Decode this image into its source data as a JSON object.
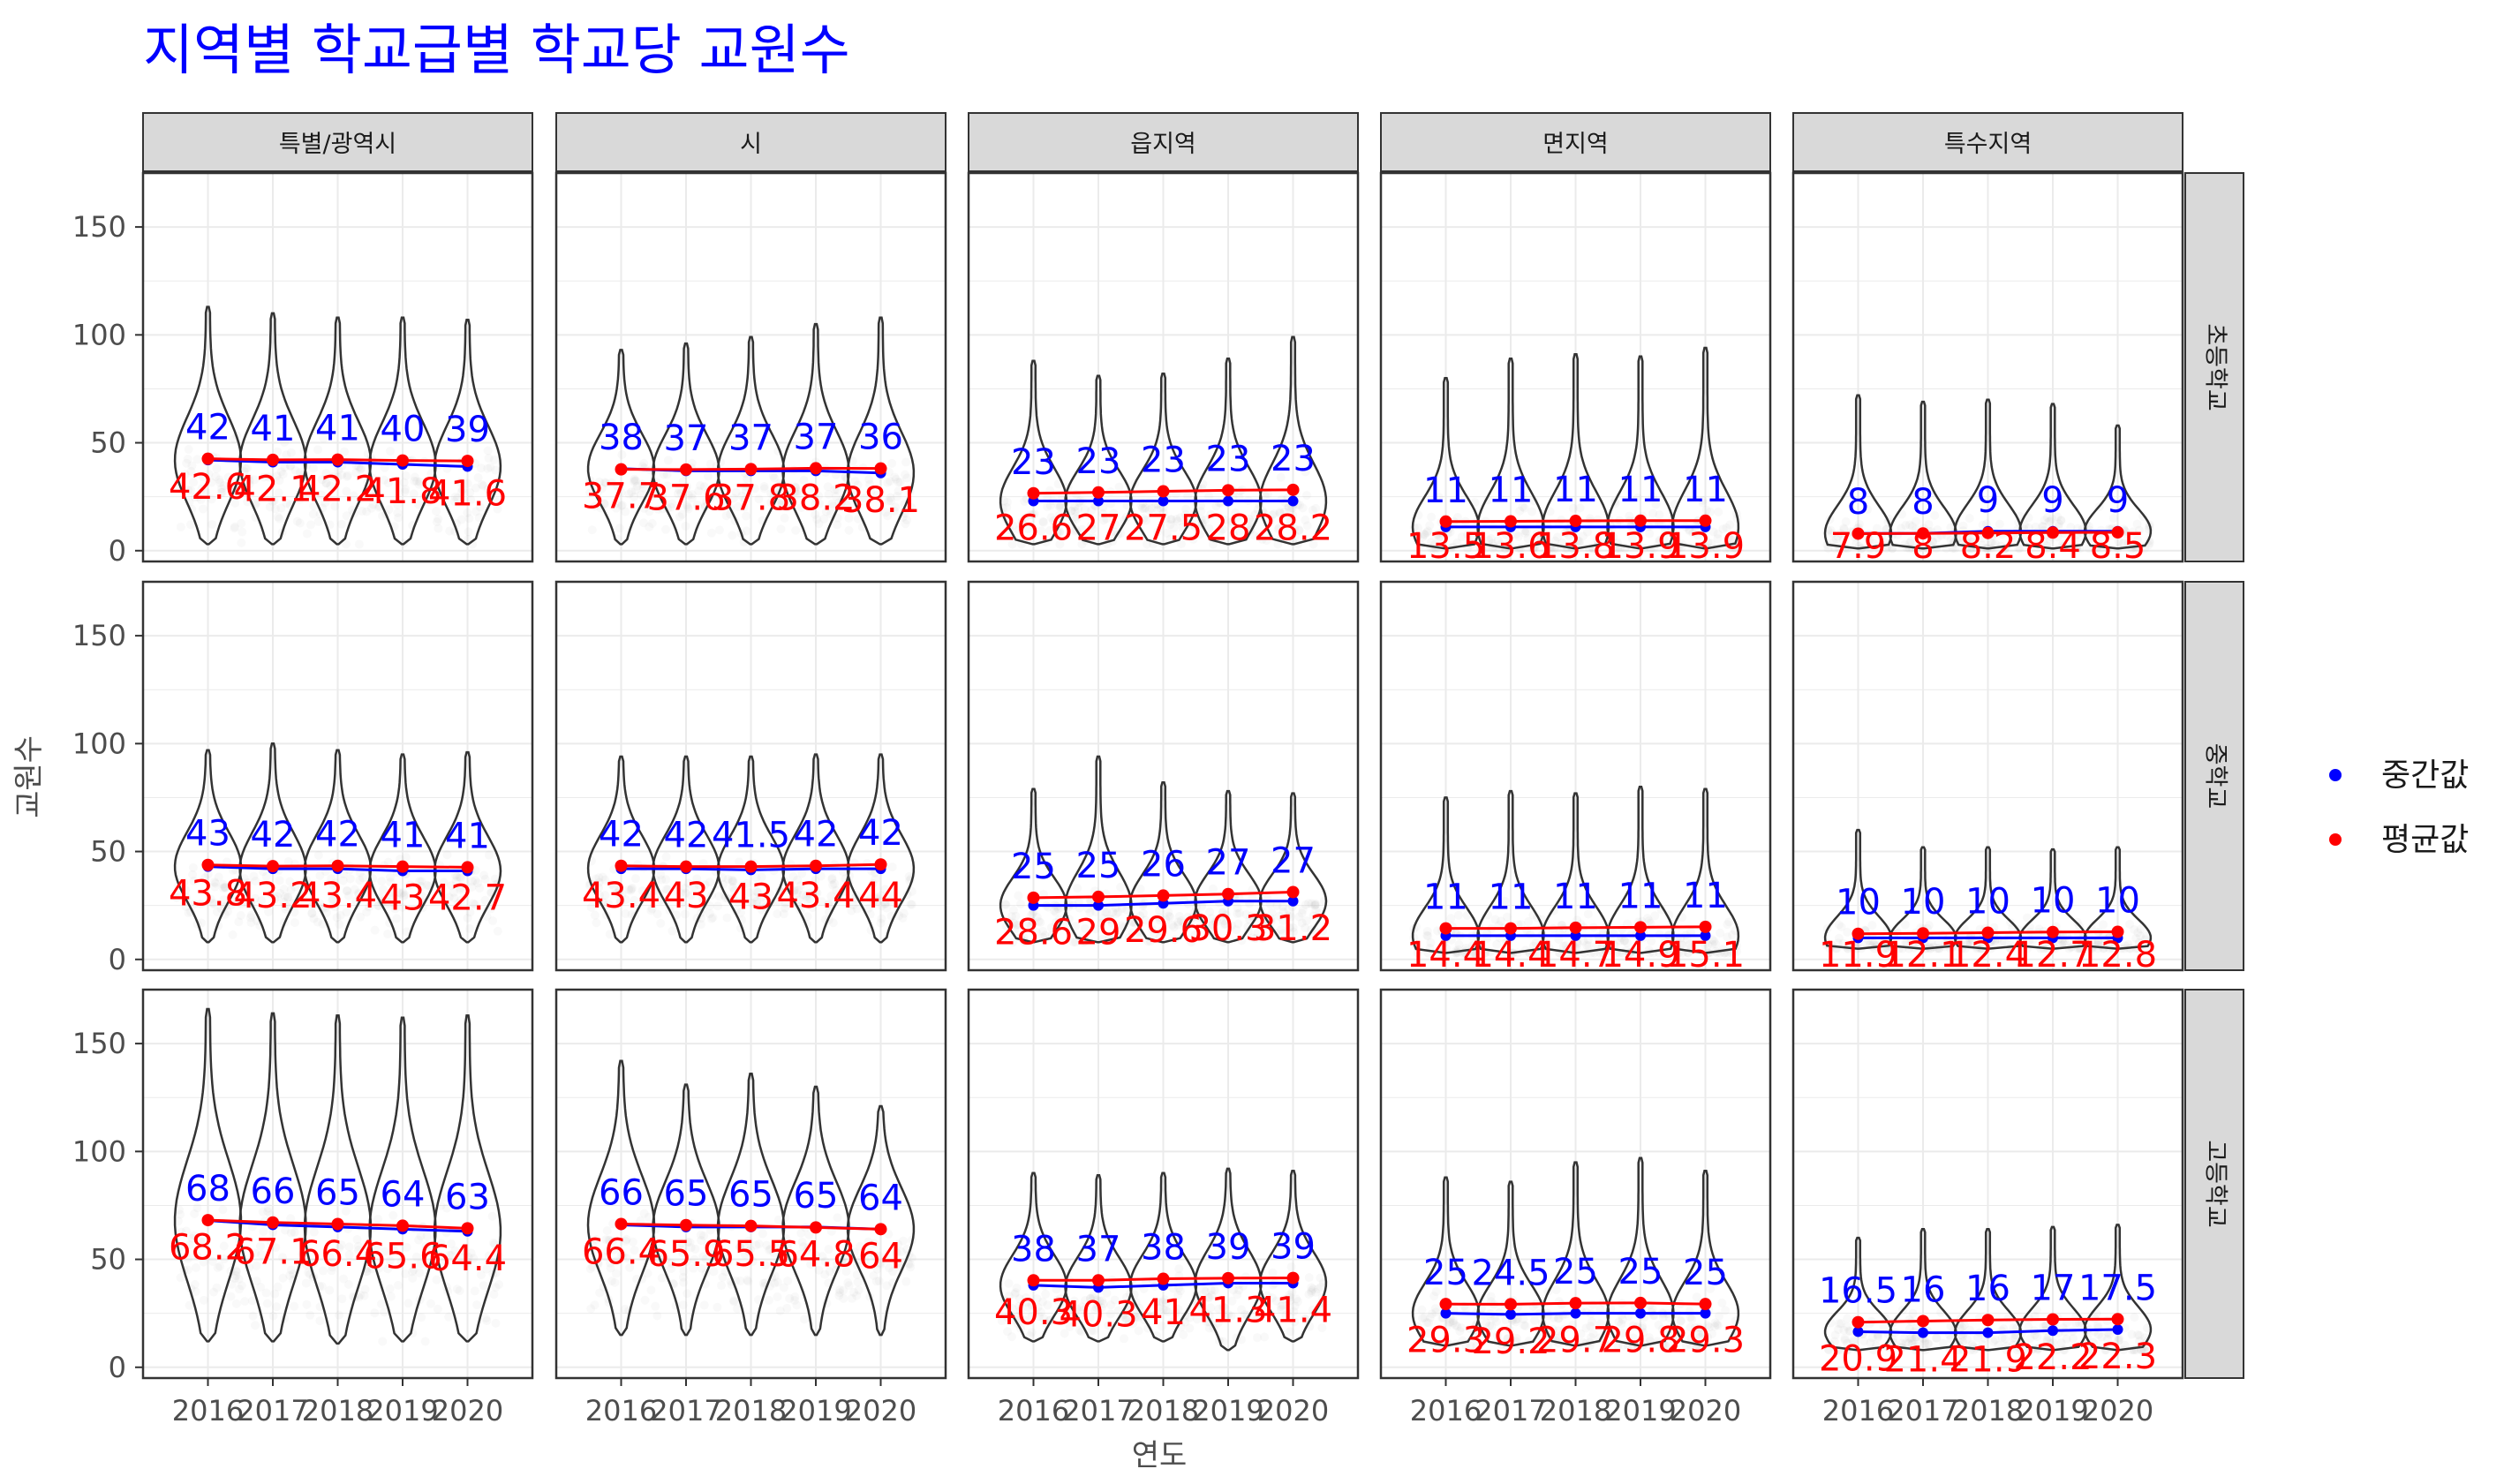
{
  "colors": {
    "median": "#0000ff",
    "mean": "#ff0000",
    "title": "#0000ff",
    "strip_fill": "#d9d9d9",
    "grid": "#ebebeb"
  },
  "chart_data": {
    "type": "violin",
    "title": "지역별 학교급별 학교당 교원수",
    "xlabel": "연도",
    "ylabel": "교원수",
    "ylim": [
      -5,
      175
    ],
    "yticks": [
      0,
      50,
      100,
      150
    ],
    "years": [
      "2016",
      "2017",
      "2018",
      "2019",
      "2020"
    ],
    "col_facets": [
      "특별/광역시",
      "시",
      "읍지역",
      "면지역",
      "특수지역"
    ],
    "row_facets": [
      "초등학교",
      "중학교",
      "고등학교"
    ],
    "legend": [
      {
        "key": "median",
        "label": "중간값",
        "color": "#0000ff"
      },
      {
        "key": "mean",
        "label": "평균값",
        "color": "#ff0000"
      }
    ],
    "series_legend_position": "right",
    "grid": true,
    "panels": [
      {
        "row": 0,
        "col": 0,
        "median": [
          42,
          41,
          41,
          40,
          39
        ],
        "median_labels": [
          "42",
          "41",
          "41",
          "40",
          "39"
        ],
        "mean": [
          42.6,
          42.1,
          42.2,
          41.8,
          41.6
        ],
        "mean_labels": [
          "42.6",
          "42.1",
          "42.2",
          "41.8",
          "41.6"
        ],
        "max": [
          113,
          110,
          108,
          108,
          107
        ],
        "min": [
          3,
          3,
          3,
          3,
          3
        ]
      },
      {
        "row": 0,
        "col": 1,
        "median": [
          38,
          37,
          37,
          37,
          36
        ],
        "median_labels": [
          "38",
          "37",
          "37",
          "37",
          "36"
        ],
        "mean": [
          37.7,
          37.6,
          37.8,
          38.2,
          38.1
        ],
        "mean_labels": [
          "37.7",
          "37.6",
          "37.8",
          "38.2",
          "38.1"
        ],
        "max": [
          93,
          96,
          99,
          105,
          108
        ],
        "min": [
          3,
          3,
          3,
          3,
          3
        ]
      },
      {
        "row": 0,
        "col": 2,
        "median": [
          23,
          23,
          23,
          23,
          23
        ],
        "median_labels": [
          "23",
          "23",
          "23",
          "23",
          "23"
        ],
        "mean": [
          26.6,
          27,
          27.5,
          28,
          28.2
        ],
        "mean_labels": [
          "26.6",
          "27",
          "27.5",
          "28",
          "28.2"
        ],
        "max": [
          88,
          81,
          82,
          89,
          99
        ],
        "min": [
          3,
          3,
          3,
          3,
          3
        ]
      },
      {
        "row": 0,
        "col": 3,
        "median": [
          11,
          11,
          11,
          11,
          11
        ],
        "median_labels": [
          "11",
          "11",
          "11",
          "11",
          "11"
        ],
        "mean": [
          13.5,
          13.6,
          13.8,
          13.9,
          13.9
        ],
        "mean_labels": [
          "13.5",
          "13.6",
          "13.8",
          "13.9",
          "13.9"
        ],
        "max": [
          80,
          89,
          91,
          90,
          94
        ],
        "min": [
          1,
          1,
          1,
          1,
          1
        ]
      },
      {
        "row": 0,
        "col": 4,
        "median": [
          8,
          8,
          9,
          9,
          9
        ],
        "median_labels": [
          "8",
          "8",
          "9",
          "9",
          "9"
        ],
        "mean": [
          7.9,
          8,
          8.2,
          8.4,
          8.5
        ],
        "mean_labels": [
          "7.9",
          "8",
          "8.2",
          "8.4",
          "8.5"
        ],
        "max": [
          72,
          69,
          70,
          68,
          58
        ],
        "min": [
          1,
          1,
          1,
          1,
          1
        ]
      },
      {
        "row": 1,
        "col": 0,
        "median": [
          43,
          42,
          42,
          41,
          41
        ],
        "median_labels": [
          "43",
          "42",
          "42",
          "41",
          "41"
        ],
        "mean": [
          43.8,
          43.2,
          43.4,
          43,
          42.7
        ],
        "mean_labels": [
          "43.8",
          "43.2",
          "43.4",
          "43",
          "42.7"
        ],
        "max": [
          97,
          100,
          97,
          95,
          96
        ],
        "min": [
          8,
          8,
          8,
          8,
          8
        ]
      },
      {
        "row": 1,
        "col": 1,
        "median": [
          42,
          42,
          41.5,
          42,
          42
        ],
        "median_labels": [
          "42",
          "42",
          "41.5",
          "42",
          "42"
        ],
        "mean": [
          43.4,
          43,
          43,
          43.4,
          44
        ],
        "mean_labels": [
          "43.4",
          "43",
          "43",
          "43.4",
          "44"
        ],
        "max": [
          94,
          94,
          94,
          95,
          95
        ],
        "min": [
          8,
          8,
          8,
          8,
          8
        ]
      },
      {
        "row": 1,
        "col": 2,
        "median": [
          25,
          25,
          26,
          27,
          27
        ],
        "median_labels": [
          "25",
          "25",
          "26",
          "27",
          "27"
        ],
        "mean": [
          28.6,
          29,
          29.6,
          30.3,
          31.2
        ],
        "mean_labels": [
          "28.6",
          "29",
          "29.6",
          "30.3",
          "31.2"
        ],
        "max": [
          79,
          94,
          82,
          78,
          77
        ],
        "min": [
          8,
          8,
          8,
          8,
          8
        ]
      },
      {
        "row": 1,
        "col": 3,
        "median": [
          11,
          11,
          11,
          11,
          11
        ],
        "median_labels": [
          "11",
          "11",
          "11",
          "11",
          "11"
        ],
        "mean": [
          14.4,
          14.4,
          14.7,
          14.9,
          15.1
        ],
        "mean_labels": [
          "14.4",
          "14.4",
          "14.7",
          "14.9",
          "15.1"
        ],
        "max": [
          75,
          78,
          77,
          80,
          79
        ],
        "min": [
          3,
          3,
          3,
          3,
          3
        ]
      },
      {
        "row": 1,
        "col": 4,
        "median": [
          10,
          10,
          10,
          10,
          10
        ],
        "median_labels": [
          "10",
          "10",
          "10",
          "10",
          "10"
        ],
        "mean": [
          11.9,
          12.1,
          12.4,
          12.7,
          12.8
        ],
        "mean_labels": [
          "11.9",
          "12.1",
          "12.4",
          "12.7",
          "12.8"
        ],
        "max": [
          60,
          52,
          52,
          51,
          52
        ],
        "min": [
          5,
          5,
          5,
          5,
          5
        ]
      },
      {
        "row": 2,
        "col": 0,
        "median": [
          68,
          66,
          65,
          64,
          63
        ],
        "median_labels": [
          "68",
          "66",
          "65",
          "64",
          "63"
        ],
        "mean": [
          68.2,
          67.1,
          66.4,
          65.6,
          64.4
        ],
        "mean_labels": [
          "68.2",
          "67.1",
          "66.4",
          "65.6",
          "64.4"
        ],
        "max": [
          166,
          164,
          163,
          162,
          163
        ],
        "min": [
          12,
          12,
          11,
          12,
          12
        ]
      },
      {
        "row": 2,
        "col": 1,
        "median": [
          66,
          65,
          65,
          65,
          64
        ],
        "median_labels": [
          "66",
          "65",
          "65",
          "65",
          "64"
        ],
        "mean": [
          66.4,
          65.9,
          65.5,
          64.8,
          64
        ],
        "mean_labels": [
          "66.4",
          "65.9",
          "65.5",
          "64.8",
          "64"
        ],
        "max": [
          142,
          131,
          136,
          130,
          121
        ],
        "min": [
          15,
          15,
          15,
          15,
          15
        ]
      },
      {
        "row": 2,
        "col": 2,
        "median": [
          38,
          37,
          38,
          39,
          39
        ],
        "median_labels": [
          "38",
          "37",
          "38",
          "39",
          "39"
        ],
        "mean": [
          40.3,
          40.3,
          41,
          41.3,
          41.4
        ],
        "mean_labels": [
          "40.3",
          "40.3",
          "41",
          "41.3",
          "41.4"
        ],
        "max": [
          90,
          89,
          90,
          92,
          91
        ],
        "min": [
          12,
          12,
          12,
          8,
          12
        ]
      },
      {
        "row": 2,
        "col": 3,
        "median": [
          25,
          24.5,
          25,
          25,
          25
        ],
        "median_labels": [
          "25",
          "24.5",
          "25",
          "25",
          "25"
        ],
        "mean": [
          29.3,
          29.2,
          29.7,
          29.8,
          29.3
        ],
        "mean_labels": [
          "29.3",
          "29.2",
          "29.7",
          "29.8",
          "29.3"
        ],
        "max": [
          88,
          86,
          95,
          97,
          91
        ],
        "min": [
          10,
          10,
          10,
          10,
          10
        ]
      },
      {
        "row": 2,
        "col": 4,
        "median": [
          16.5,
          16,
          16,
          17,
          17.5
        ],
        "median_labels": [
          "16.5",
          "16",
          "16",
          "17",
          "17.5"
        ],
        "mean": [
          20.9,
          21.4,
          21.9,
          22.2,
          22.3
        ],
        "mean_labels": [
          "20.9",
          "21.4",
          "21.9",
          "22.2",
          "22.3"
        ],
        "max": [
          60,
          64,
          64,
          65,
          66
        ],
        "min": [
          8,
          8,
          8,
          8,
          8
        ]
      }
    ]
  }
}
